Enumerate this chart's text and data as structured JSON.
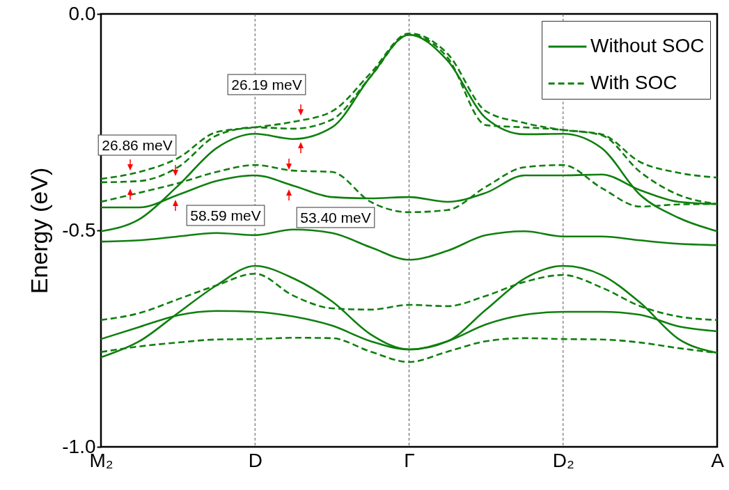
{
  "chart_data": {
    "type": "line",
    "ylabel": "Energy (eV)",
    "categories": [
      "M₂",
      null,
      null,
      null,
      "D",
      null,
      null,
      null,
      "Γ",
      null,
      null,
      null,
      "D₂",
      null,
      null,
      null,
      "A"
    ],
    "ylim": [
      -1,
      0
    ],
    "yticks": [
      {
        "value": -1,
        "label": "-1.0"
      },
      {
        "value": -0.5,
        "label": "-0.5"
      },
      {
        "value": 0,
        "label": "0.0"
      }
    ],
    "grid": false,
    "legend": "top right",
    "marker": "none",
    "series": [
      {
        "name": "Without SOC",
        "color": "#0f7f0f",
        "line_style": "solid",
        "values": [
          -0.502,
          -0.474,
          -0.397,
          -0.31,
          -0.277,
          -0.289,
          -0.262,
          -0.145,
          -0.048,
          -0.108,
          -0.241,
          -0.278,
          -0.277,
          -0.31,
          -0.418,
          -0.471,
          -0.502
        ]
      },
      {
        "name": "With SOC",
        "color": "#0f7f0f",
        "line_style": "dashed",
        "values": [
          -0.381,
          -0.365,
          -0.333,
          -0.273,
          -0.262,
          -0.249,
          -0.225,
          -0.137,
          -0.045,
          -0.092,
          -0.225,
          -0.252,
          -0.268,
          -0.278,
          -0.342,
          -0.367,
          -0.378
        ]
      },
      {
        "color": "#0f7f0f",
        "line_style": "dashed",
        "values": [
          -0.389,
          -0.386,
          -0.354,
          -0.281,
          -0.262,
          -0.265,
          -0.244,
          -0.145,
          -0.048,
          -0.101,
          -0.257,
          -0.262,
          -0.268,
          -0.28,
          -0.365,
          -0.418,
          -0.439
        ]
      },
      {
        "color": "#0f7f0f",
        "line_style": "solid",
        "values": [
          -0.447,
          -0.447,
          -0.418,
          -0.386,
          -0.373,
          -0.397,
          -0.423,
          -0.426,
          -0.423,
          -0.434,
          -0.413,
          -0.373,
          -0.373,
          -0.371,
          -0.407,
          -0.434,
          -0.439
        ]
      },
      {
        "color": "#0f7f0f",
        "line_style": "dashed",
        "values": [
          -0.434,
          -0.413,
          -0.391,
          -0.365,
          -0.349,
          -0.362,
          -0.365,
          -0.434,
          -0.458,
          -0.453,
          -0.399,
          -0.354,
          -0.349,
          -0.402,
          -0.445,
          -0.44,
          -0.439
        ]
      },
      {
        "color": "#0f7f0f",
        "line_style": "solid",
        "values": [
          -0.526,
          -0.523,
          -0.514,
          -0.506,
          -0.511,
          -0.498,
          -0.506,
          -0.539,
          -0.568,
          -0.547,
          -0.511,
          -0.502,
          -0.514,
          -0.514,
          -0.523,
          -0.531,
          -0.534
        ]
      },
      {
        "color": "#0f7f0f",
        "line_style": "solid",
        "values": [
          -0.793,
          -0.756,
          -0.691,
          -0.627,
          -0.582,
          -0.611,
          -0.664,
          -0.74,
          -0.775,
          -0.756,
          -0.683,
          -0.611,
          -0.582,
          -0.603,
          -0.667,
          -0.751,
          -0.783
        ]
      },
      {
        "color": "#0f7f0f",
        "line_style": "solid",
        "values": [
          -0.751,
          -0.723,
          -0.696,
          -0.686,
          -0.688,
          -0.699,
          -0.72,
          -0.756,
          -0.775,
          -0.756,
          -0.717,
          -0.695,
          -0.688,
          -0.688,
          -0.695,
          -0.722,
          -0.733
        ]
      },
      {
        "color": "#0f7f0f",
        "line_style": "dashed",
        "values": [
          -0.781,
          -0.768,
          -0.759,
          -0.752,
          -0.751,
          -0.748,
          -0.749,
          -0.78,
          -0.804,
          -0.78,
          -0.756,
          -0.749,
          -0.751,
          -0.752,
          -0.759,
          -0.772,
          -0.783
        ]
      },
      {
        "color": "#0f7f0f",
        "line_style": "dashed",
        "values": [
          -0.707,
          -0.691,
          -0.659,
          -0.627,
          -0.6,
          -0.651,
          -0.68,
          -0.683,
          -0.672,
          -0.675,
          -0.651,
          -0.619,
          -0.603,
          -0.632,
          -0.675,
          -0.699,
          -0.707
        ]
      }
    ],
    "ref_lines": [
      {
        "axis": "x",
        "value": "D",
        "color": "#555555",
        "line_style": "dashed"
      },
      {
        "axis": "x",
        "value": "Γ",
        "color": "#555555",
        "line_style": "dashed"
      },
      {
        "axis": "x",
        "value": "D₂",
        "color": "#555555",
        "line_style": "dashed"
      }
    ],
    "annotations": [
      "26.19 meV",
      "26.86 meV",
      "58.59 meV",
      "53.40 meV"
    ]
  }
}
